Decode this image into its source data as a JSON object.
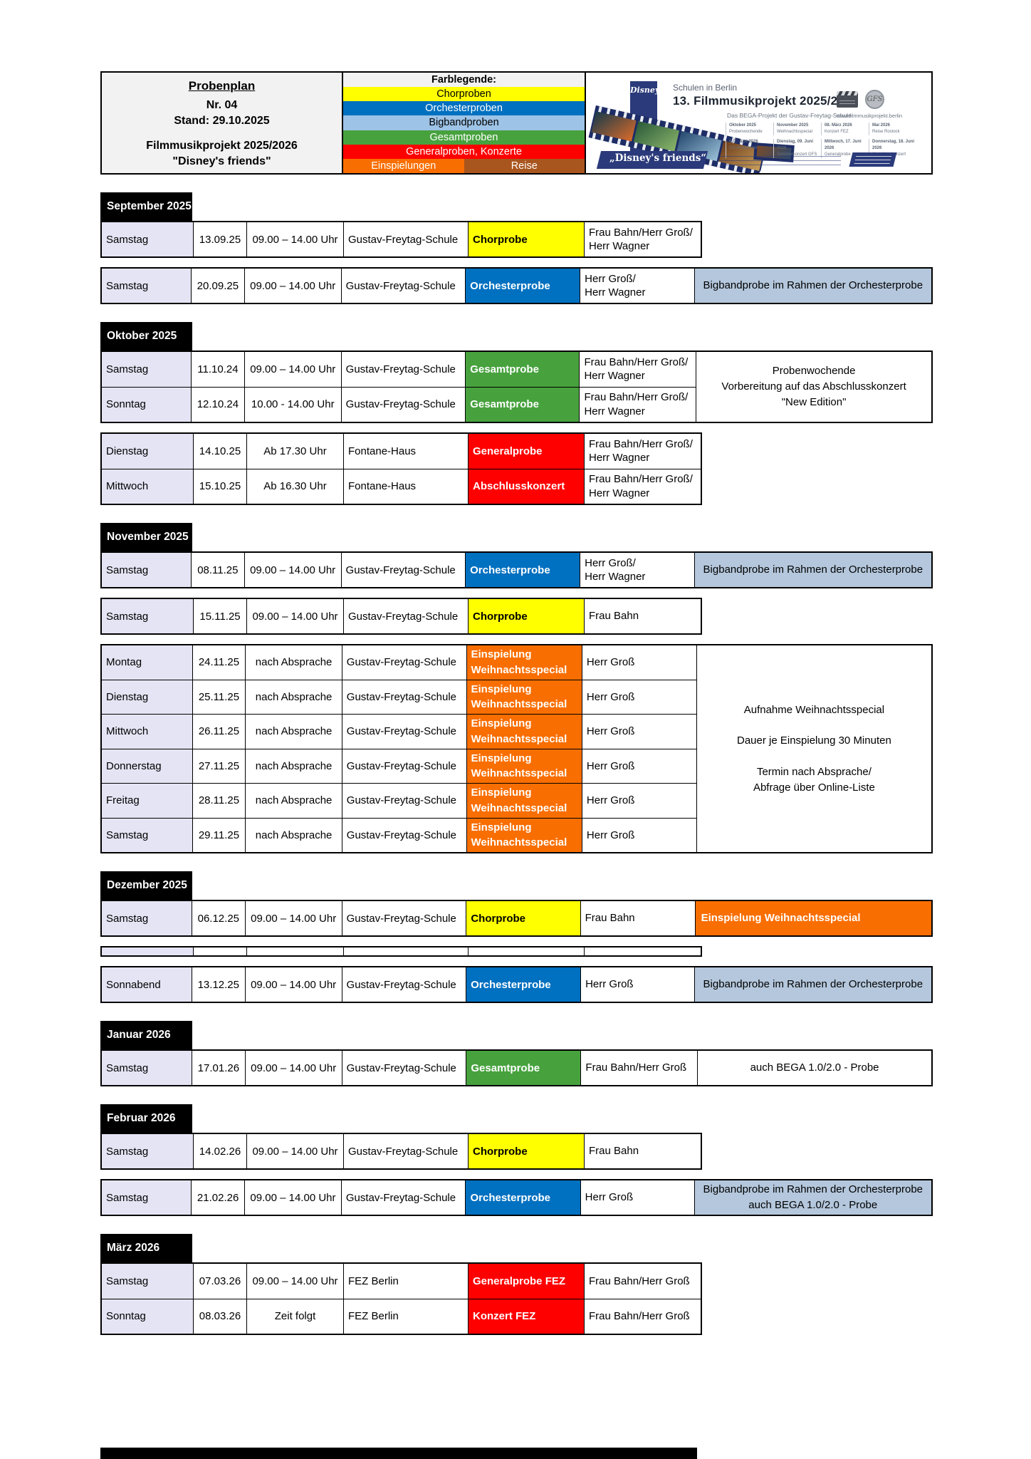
{
  "header": {
    "title": "Probenplan",
    "number": "Nr. 04",
    "stand": "Stand: 29.10.2025",
    "project": "Filmmusikprojekt 2025/2026",
    "project_sub": "\"Disney's friends\"",
    "legend": {
      "title": "Farblegende:",
      "items": [
        {
          "label": "Chorproben",
          "bg": "#FFFF00",
          "fg": "#000000"
        },
        {
          "label": "Orchesterproben",
          "bg": "#0070C0",
          "fg": "#FFFFFF"
        },
        {
          "label": "Bigbandproben",
          "bg": "#9DC3E6",
          "fg": "#000000"
        },
        {
          "label": "Gesamtproben",
          "bg": "#47A23E",
          "fg": "#FFFFFF"
        },
        {
          "label": "Generalproben, Konzerte",
          "bg": "#FF0000",
          "fg": "#FFFFFF"
        }
      ],
      "split": [
        {
          "label": "Einspielungen",
          "bg": "#F96E00",
          "fg": "#FFFFFF"
        },
        {
          "label": "Reise",
          "bg": "#A9561E",
          "fg": "#FFFFFF"
        }
      ]
    },
    "banner": {
      "disney_logo": "Disney",
      "line1": "Schulen in Berlin",
      "line2": "13. Filmmusikprojekt 2025/2026",
      "line3": "Das BEGA-Projekt der Gustav-Freytag-Schule",
      "website": "www.filmmusikprojekt.berlin",
      "slogan": "„Disney's friends“",
      "mini_schedule": [
        {
          "date": "Oktober 2025",
          "event": "Probenwochende"
        },
        {
          "date": "November 2025",
          "event": "Weihnachtsspecial"
        },
        {
          "date": "08. März 2026",
          "event": "Konzert FEZ"
        },
        {
          "date": "Mai 2026",
          "event": "Reise Rostock"
        },
        {
          "date": "6./7. Juni 2026",
          "event": "CD-Produktion"
        },
        {
          "date": "Dienstag, 09. Juni 2026",
          "event": "Sommerkonzert GFS"
        },
        {
          "date": "Mittwoch, 17. Juni 2026",
          "event": "Generalprobe"
        },
        {
          "date": "Donnerstag, 18. Juni 2026",
          "event": "Abschlusskonzert"
        }
      ]
    }
  },
  "colors": {
    "chor": "#FFFF00",
    "orchester": "#0070C0",
    "bigband_note": "#B4C7DC",
    "gesamt": "#47A23E",
    "general": "#FF0000",
    "einspielung": "#F96E00",
    "day_col": "#E4E4F4",
    "month_bar": "#000000"
  },
  "sections": [
    {
      "month": "September 2025",
      "blocks": [
        {
          "rows": [
            {
              "day": "Samstag",
              "date": "13.09.25",
              "time": "09.00 – 14.00 Uhr",
              "location": "Gustav-Freytag-Schule",
              "type": {
                "label": [
                  "Chorprobe"
                ],
                "bg": "#FFFF00",
                "fg": "#000000"
              },
              "leader": [
                "Frau Bahn/Herr Groß/",
                "Herr Wagner"
              ]
            }
          ]
        },
        {
          "rows": [
            {
              "day": "Samstag",
              "date": "20.09.25",
              "time": "09.00 – 14.00 Uhr",
              "location": "Gustav-Freytag-Schule",
              "type": {
                "label": [
                  "Orchesterprobe"
                ],
                "bg": "#0070C0",
                "fg": "#FFFFFF"
              },
              "leader": [
                "Herr Groß/",
                "Herr Wagner"
              ]
            }
          ],
          "note": {
            "lines": [
              "Bigbandprobe im Rahmen der Orchesterprobe"
            ],
            "bg": "#B4C7DC",
            "fg": "#000000",
            "align": "center"
          }
        }
      ]
    },
    {
      "month": "Oktober 2025",
      "blocks": [
        {
          "rows": [
            {
              "day": "Samstag",
              "date": "11.10.24",
              "time": "09.00 – 14.00 Uhr",
              "location": "Gustav-Freytag-Schule",
              "type": {
                "label": [
                  "Gesamtprobe"
                ],
                "bg": "#47A23E",
                "fg": "#FFFFFF"
              },
              "leader": [
                "Frau Bahn/Herr Groß/",
                "Herr Wagner"
              ]
            },
            {
              "day": "Sonntag",
              "date": "12.10.24",
              "time": "10.00 - 14.00 Uhr",
              "location": "Gustav-Freytag-Schule",
              "type": {
                "label": [
                  "Gesamtprobe"
                ],
                "bg": "#47A23E",
                "fg": "#FFFFFF"
              },
              "leader": [
                "Frau Bahn/Herr Groß/",
                "Herr Wagner"
              ]
            }
          ],
          "note": {
            "lines": [
              "Probenwochende",
              "Vorbereitung auf das Abschlusskonzert",
              "\"New Edition\""
            ],
            "bg": "#FFFFFF",
            "fg": "#000000",
            "align": "center"
          }
        },
        {
          "rows": [
            {
              "day": "Dienstag",
              "date": "14.10.25",
              "time": "Ab 17.30 Uhr",
              "location": "Fontane-Haus",
              "type": {
                "label": [
                  "Generalprobe"
                ],
                "bg": "#FF0000",
                "fg": "#FFFFFF"
              },
              "leader": [
                "Frau Bahn/Herr Groß/",
                "Herr Wagner"
              ]
            },
            {
              "day": "Mittwoch",
              "date": "15.10.25",
              "time": "Ab 16.30 Uhr",
              "location": "Fontane-Haus",
              "type": {
                "label": [
                  "Abschlusskonzert"
                ],
                "bg": "#FF0000",
                "fg": "#FFFFFF"
              },
              "leader": [
                "Frau Bahn/Herr Groß/",
                "Herr Wagner"
              ]
            }
          ]
        }
      ]
    },
    {
      "month": "November 2025",
      "blocks": [
        {
          "rows": [
            {
              "day": "Samstag",
              "date": "08.11.25",
              "time": "09.00 – 14.00 Uhr",
              "location": "Gustav-Freytag-Schule",
              "type": {
                "label": [
                  "Orchesterprobe"
                ],
                "bg": "#0070C0",
                "fg": "#FFFFFF"
              },
              "leader": [
                "Herr Groß/",
                "Herr Wagner"
              ]
            }
          ],
          "note": {
            "lines": [
              "Bigbandprobe im Rahmen der Orchesterprobe"
            ],
            "bg": "#B4C7DC",
            "fg": "#000000",
            "align": "center"
          }
        },
        {
          "rows": [
            {
              "day": "Samstag",
              "date": "15.11.25",
              "time": "09.00 – 14.00 Uhr",
              "location": "Gustav-Freytag-Schule",
              "type": {
                "label": [
                  "Chorprobe"
                ],
                "bg": "#FFFF00",
                "fg": "#000000"
              },
              "leader": [
                "Frau Bahn"
              ]
            }
          ]
        },
        {
          "rows": [
            {
              "day": "Montag",
              "date": "24.11.25",
              "time": "nach Absprache",
              "location": "Gustav-Freytag-Schule",
              "type": {
                "label": [
                  "Einspielung",
                  "Weihnachtsspecial"
                ],
                "bg": "#F96E00",
                "fg": "#FFFFFF",
                "small": true
              },
              "leader": [
                "Herr Groß"
              ],
              "einsp": true
            },
            {
              "day": "Dienstag",
              "date": "25.11.25",
              "time": "nach Absprache",
              "location": "Gustav-Freytag-Schule",
              "type": {
                "label": [
                  "Einspielung",
                  "Weihnachtsspecial"
                ],
                "bg": "#F96E00",
                "fg": "#FFFFFF",
                "small": true
              },
              "leader": [
                "Herr Groß"
              ],
              "einsp": true
            },
            {
              "day": "Mittwoch",
              "date": "26.11.25",
              "time": "nach Absprache",
              "location": "Gustav-Freytag-Schule",
              "type": {
                "label": [
                  "Einspielung",
                  "Weihnachtsspecial"
                ],
                "bg": "#F96E00",
                "fg": "#FFFFFF",
                "small": true
              },
              "leader": [
                "Herr Groß"
              ],
              "einsp": true
            },
            {
              "day": "Donnerstag",
              "date": "27.11.25",
              "time": "nach Absprache",
              "location": "Gustav-Freytag-Schule",
              "type": {
                "label": [
                  "Einspielung",
                  "Weihnachtsspecial"
                ],
                "bg": "#F96E00",
                "fg": "#FFFFFF",
                "small": true
              },
              "leader": [
                "Herr Groß"
              ],
              "einsp": true
            },
            {
              "day": "Freitag",
              "date": "28.11.25",
              "time": "nach Absprache",
              "location": "Gustav-Freytag-Schule",
              "type": {
                "label": [
                  "Einspielung",
                  "Weihnachtsspecial"
                ],
                "bg": "#F96E00",
                "fg": "#FFFFFF",
                "small": true
              },
              "leader": [
                "Herr Groß"
              ],
              "einsp": true
            },
            {
              "day": "Samstag",
              "date": "29.11.25",
              "time": "nach Absprache",
              "location": "Gustav-Freytag-Schule",
              "type": {
                "label": [
                  "Einspielung",
                  "Weihnachtsspecial"
                ],
                "bg": "#F96E00",
                "fg": "#FFFFFF",
                "small": true
              },
              "leader": [
                "Herr Groß"
              ],
              "einsp": true
            }
          ],
          "note": {
            "lines": [
              "Aufnahme Weihnachtsspecial",
              "",
              "Dauer je Einspielung 30 Minuten",
              "",
              "Termin nach Absprache/",
              "Abfrage über Online-Liste"
            ],
            "bg": "#FFFFFF",
            "fg": "#000000",
            "align": "center"
          }
        }
      ]
    },
    {
      "month": "Dezember 2025",
      "blocks": [
        {
          "rows": [
            {
              "day": "Samstag",
              "date": "06.12.25",
              "time": "09.00 – 14.00 Uhr",
              "location": "Gustav-Freytag-Schule",
              "type": {
                "label": [
                  "Chorprobe"
                ],
                "bg": "#FFFF00",
                "fg": "#000000"
              },
              "leader": [
                "Frau Bahn"
              ]
            }
          ],
          "note": {
            "lines": [
              "Einspielung Weihnachtsspecial"
            ],
            "bg": "#F96E00",
            "fg": "#FFFFFF",
            "align": "left",
            "bold": true
          }
        },
        {
          "empty": true
        },
        {
          "rows": [
            {
              "day": "Sonnabend",
              "date": "13.12.25",
              "time": "09.00 – 14.00 Uhr",
              "location": "Gustav-Freytag-Schule",
              "type": {
                "label": [
                  "Orchesterprobe"
                ],
                "bg": "#0070C0",
                "fg": "#FFFFFF"
              },
              "leader": [
                "Herr Groß"
              ]
            }
          ],
          "note": {
            "lines": [
              "Bigbandprobe im Rahmen der Orchesterprobe"
            ],
            "bg": "#B4C7DC",
            "fg": "#000000",
            "align": "center"
          }
        }
      ]
    },
    {
      "month": "Januar 2026",
      "blocks": [
        {
          "rows": [
            {
              "day": "Samstag",
              "date": "17.01.26",
              "time": "09.00 – 14.00 Uhr",
              "location": "Gustav-Freytag-Schule",
              "type": {
                "label": [
                  "Gesamtprobe"
                ],
                "bg": "#47A23E",
                "fg": "#FFFFFF"
              },
              "leader": [
                "Frau Bahn/Herr Groß"
              ]
            }
          ],
          "note": {
            "lines": [
              "auch BEGA 1.0/2.0 - Probe"
            ],
            "bg": "#FFFFFF",
            "fg": "#000000",
            "align": "center"
          }
        }
      ]
    },
    {
      "month": "Februar 2026",
      "blocks": [
        {
          "rows": [
            {
              "day": "Samstag",
              "date": "14.02.26",
              "time": "09.00 – 14.00 Uhr",
              "location": "Gustav-Freytag-Schule",
              "type": {
                "label": [
                  "Chorprobe"
                ],
                "bg": "#FFFF00",
                "fg": "#000000"
              },
              "leader": [
                "Frau Bahn"
              ]
            }
          ]
        },
        {
          "rows": [
            {
              "day": "Samstag",
              "date": "21.02.26",
              "time": "09.00 – 14.00 Uhr",
              "location": "Gustav-Freytag-Schule",
              "type": {
                "label": [
                  "Orchesterprobe"
                ],
                "bg": "#0070C0",
                "fg": "#FFFFFF"
              },
              "leader": [
                "Herr Groß"
              ]
            }
          ],
          "note": {
            "lines": [
              "Bigbandprobe im Rahmen der Orchesterprobe",
              "auch BEGA 1.0/2.0 - Probe"
            ],
            "bg": "#B4C7DC",
            "fg": "#000000",
            "align": "center"
          }
        }
      ]
    },
    {
      "month": "März 2026",
      "blocks": [
        {
          "rows": [
            {
              "day": "Samstag",
              "date": "07.03.26",
              "time": "09.00 – 14.00 Uhr",
              "location": "FEZ Berlin",
              "type": {
                "label": [
                  "Generalprobe FEZ"
                ],
                "bg": "#FF0000",
                "fg": "#FFFFFF"
              },
              "leader": [
                "Frau Bahn/Herr Groß"
              ]
            },
            {
              "day": "Sonntag",
              "date": "08.03.26",
              "time": "Zeit folgt",
              "location": "FEZ Berlin",
              "type": {
                "label": [
                  "Konzert FEZ"
                ],
                "bg": "#FF0000",
                "fg": "#FFFFFF"
              },
              "leader": [
                "Frau Bahn/Herr Groß"
              ]
            }
          ]
        }
      ]
    }
  ]
}
